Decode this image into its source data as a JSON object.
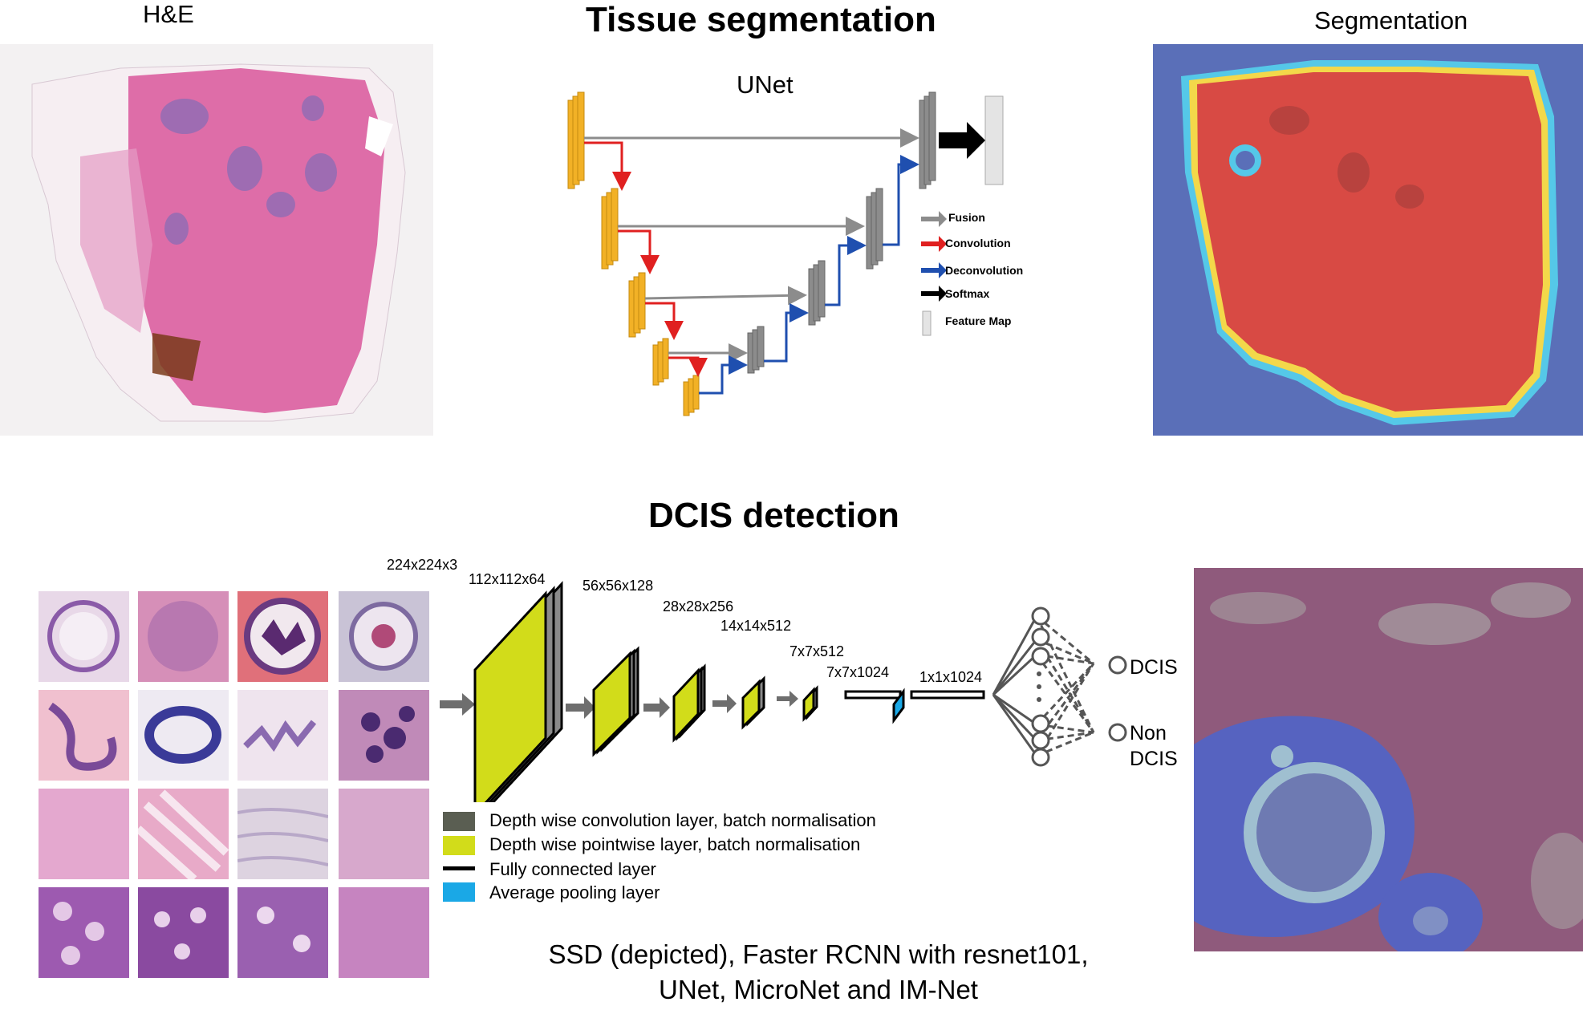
{
  "top": {
    "he_label": "H&E",
    "title": "Tissue segmentation",
    "unet_label": "UNet",
    "seg_label": "Segmentation",
    "legend": {
      "fusion": "Fusion",
      "convolution": "Convolution",
      "deconvolution": "Deconvolution",
      "softmax": "Softmax",
      "feature_map": "Feature Map"
    },
    "colors": {
      "encoder": "#f2b126",
      "decoder": "#8c8c8c",
      "fusion": "#8c8c8c",
      "convolution": "#e02020",
      "deconvolution": "#1f4faf",
      "softmax": "#000000"
    }
  },
  "bottom": {
    "title": "DCIS detection",
    "dims": [
      "224x224x3",
      "112x112x64",
      "56x56x128",
      "28x28x256",
      "14x14x512",
      "7x7x512",
      "7x7x1024",
      "1x1x1024"
    ],
    "outputs": [
      "DCIS",
      "Non",
      "DCIS"
    ],
    "legend": [
      {
        "label": "Depth wise convolution layer, batch normalisation",
        "color": "#5a5e52"
      },
      {
        "label": "Depth wise pointwise layer, batch normalisation",
        "color": "#d2dc1a"
      },
      {
        "label": "Fully connected layer",
        "color": "#000000"
      },
      {
        "label": "Average pooling layer",
        "color": "#1aa8e6"
      }
    ],
    "models_line1": "SSD (depicted), Faster RCNN with resnet101,",
    "models_line2": "UNet, MicroNet and IM-Net"
  }
}
